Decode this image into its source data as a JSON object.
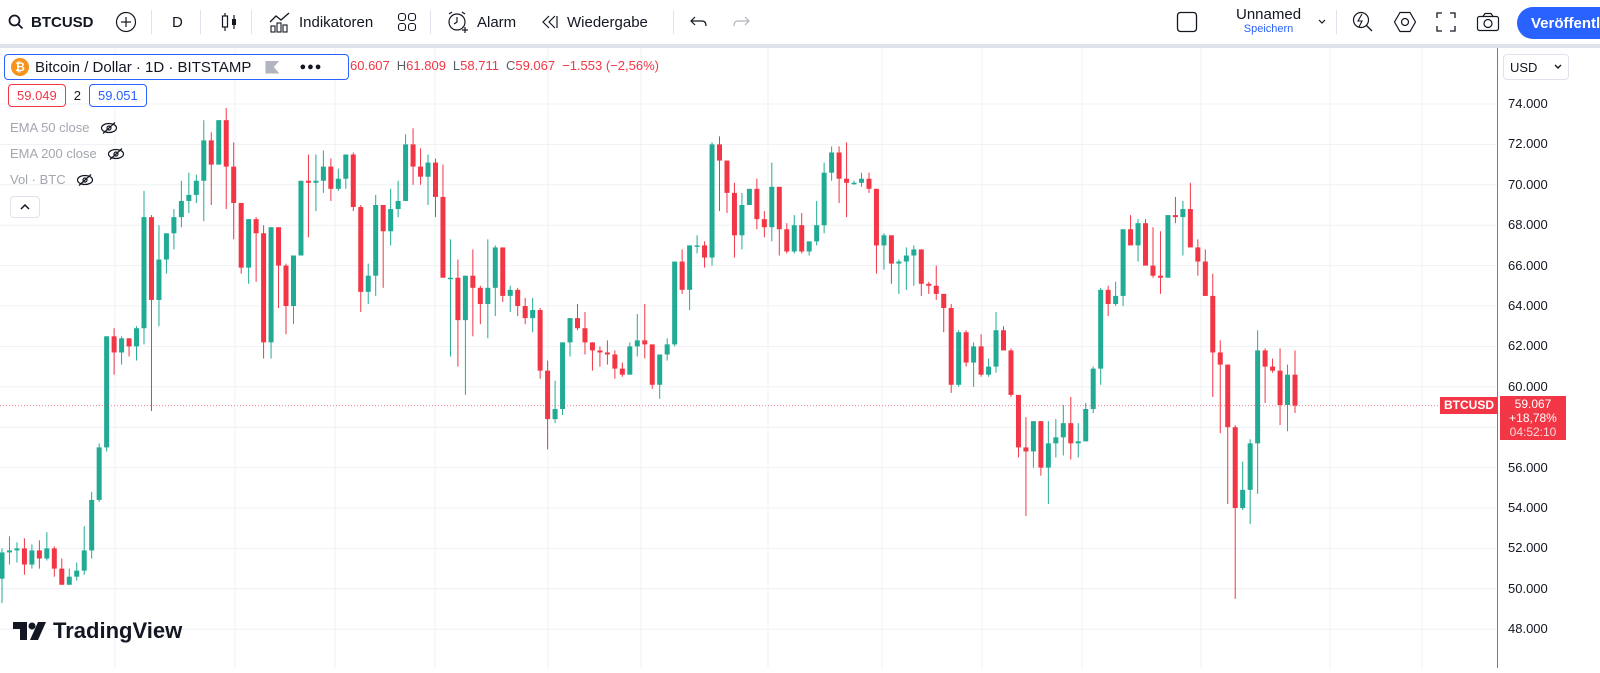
{
  "toolbar": {
    "symbol": "BTCUSD",
    "interval": "D",
    "indicators_label": "Indikatoren",
    "alarm_label": "Alarm",
    "replay_label": "Wiedergabe",
    "layout_name": "Unnamed",
    "save_label": "Speichern",
    "publish_label": "Veröffentl"
  },
  "legend": {
    "title": "Bitcoin / Dollar · 1D · BITSTAMP",
    "logo_letter": "₿",
    "open_label": "O",
    "open": "60.607",
    "high_label": "H",
    "high": "61.809",
    "low_label": "L",
    "low": "58.711",
    "close_label": "C",
    "close": "59.067",
    "change": "−1.553 (−2,56%)",
    "bid": "59.049",
    "spread": "2",
    "ask": "59.051"
  },
  "indicators": [
    {
      "label": "EMA 50 close",
      "visible": false
    },
    {
      "label": "EMA 200 close",
      "visible": false
    },
    {
      "label": "Vol · BTC",
      "visible": false
    }
  ],
  "price_axis": {
    "currency": "USD",
    "ticks": [
      "74.000",
      "72.000",
      "70.000",
      "68.000",
      "66.000",
      "64.000",
      "62.000",
      "60.000",
      "58.000",
      "56.000",
      "54.000",
      "52.000",
      "50.000",
      "48.000"
    ],
    "last_price": "59.067",
    "last_change": "+18,78%",
    "countdown": "04:52:10",
    "symbol_tag": "BTCUSD"
  },
  "branding": {
    "logo_text": "TradingView"
  },
  "colors": {
    "up": "#22ab94",
    "down": "#f23645",
    "accent": "#2962ff",
    "grid": "#eef1f6"
  },
  "chart_data": {
    "type": "candlestick",
    "title": "Bitcoin / Dollar · 1D · BITSTAMP",
    "ylabel": "USD",
    "ylim": [
      47000,
      75500
    ],
    "y_ticks": [
      48000,
      50000,
      52000,
      54000,
      56000,
      58000,
      60000,
      62000,
      64000,
      66000,
      68000,
      70000,
      72000,
      74000
    ],
    "last_close": 59067,
    "ohlc_thousands": [
      [
        50.5,
        52.0,
        49.3,
        51.8
      ],
      [
        51.8,
        52.6,
        51.2,
        51.9
      ],
      [
        51.9,
        52.3,
        51.3,
        52.0
      ],
      [
        52.0,
        52.5,
        50.7,
        51.2
      ],
      [
        51.2,
        52.2,
        51.0,
        51.9
      ],
      [
        51.9,
        52.4,
        51.0,
        51.5
      ],
      [
        51.5,
        52.8,
        51.4,
        52.0
      ],
      [
        52.0,
        52.1,
        50.6,
        51.0
      ],
      [
        51.0,
        51.5,
        50.2,
        50.2
      ],
      [
        50.2,
        51.0,
        50.2,
        50.6
      ],
      [
        50.6,
        51.3,
        50.4,
        50.9
      ],
      [
        50.9,
        53.1,
        50.7,
        51.9
      ],
      [
        51.9,
        54.8,
        51.5,
        54.4
      ],
      [
        54.4,
        57.2,
        54.3,
        57.0
      ],
      [
        57.0,
        62.5,
        56.8,
        62.5
      ],
      [
        62.5,
        62.9,
        60.6,
        61.7
      ],
      [
        61.7,
        62.5,
        61.1,
        62.4
      ],
      [
        62.4,
        62.4,
        61.5,
        62.0
      ],
      [
        62.0,
        63.0,
        61.3,
        62.9
      ],
      [
        62.9,
        69.7,
        62.1,
        68.4
      ],
      [
        68.4,
        68.5,
        58.8,
        64.3
      ],
      [
        64.3,
        68.0,
        63.0,
        66.3
      ],
      [
        66.3,
        67.2,
        65.6,
        67.6
      ],
      [
        67.6,
        68.8,
        66.8,
        68.4
      ],
      [
        68.4,
        70.2,
        67.9,
        69.2
      ],
      [
        69.2,
        70.6,
        68.6,
        69.5
      ],
      [
        69.5,
        70.5,
        69.1,
        70.2
      ],
      [
        70.2,
        73.2,
        68.2,
        72.2
      ],
      [
        72.2,
        72.6,
        69.0,
        71.0
      ],
      [
        71.0,
        73.2,
        72.1,
        73.2
      ],
      [
        73.2,
        73.8,
        68.8,
        70.9
      ],
      [
        70.9,
        72.1,
        67.3,
        69.1
      ],
      [
        69.1,
        69.0,
        65.6,
        65.9
      ],
      [
        65.9,
        68.3,
        65.1,
        68.3
      ],
      [
        68.3,
        68.4,
        65.2,
        67.6
      ],
      [
        67.6,
        68.0,
        61.4,
        62.2
      ],
      [
        62.2,
        67.9,
        61.4,
        67.9
      ],
      [
        67.9,
        67.8,
        63.9,
        66.0
      ],
      [
        66.0,
        66.1,
        62.6,
        64.0
      ],
      [
        64.0,
        65.6,
        63.1,
        66.5
      ],
      [
        66.5,
        68.8,
        66.7,
        70.2
      ],
      [
        70.2,
        71.5,
        67.4,
        70.1
      ],
      [
        70.1,
        71.5,
        68.7,
        70.2
      ],
      [
        70.2,
        71.7,
        69.6,
        70.9
      ],
      [
        70.9,
        71.3,
        69.2,
        69.8
      ],
      [
        69.8,
        70.8,
        69.7,
        70.3
      ],
      [
        70.3,
        71.5,
        69.8,
        71.5
      ],
      [
        71.5,
        71.6,
        68.7,
        68.9
      ],
      [
        68.9,
        69.0,
        63.7,
        64.7
      ],
      [
        64.7,
        66.1,
        64.1,
        65.5
      ],
      [
        65.5,
        69.5,
        64.5,
        69.0
      ],
      [
        69.0,
        69.0,
        64.9,
        67.7
      ],
      [
        67.7,
        69.8,
        67.0,
        68.8
      ],
      [
        68.8,
        70.2,
        68.4,
        69.2
      ],
      [
        69.2,
        72.5,
        69.4,
        72.0
      ],
      [
        72.0,
        72.8,
        70.0,
        70.9
      ],
      [
        70.9,
        71.8,
        70.0,
        70.4
      ],
      [
        70.4,
        71.5,
        69.0,
        71.1
      ],
      [
        71.1,
        71.3,
        68.4,
        69.4
      ],
      [
        69.4,
        71.0,
        66.5,
        65.4
      ],
      [
        65.4,
        67.3,
        61.5,
        65.4
      ],
      [
        65.4,
        66.3,
        61.0,
        63.3
      ],
      [
        63.3,
        65.3,
        59.6,
        65.5
      ],
      [
        65.5,
        66.8,
        62.5,
        64.9
      ],
      [
        64.9,
        65.0,
        63.1,
        64.1
      ],
      [
        64.1,
        67.3,
        62.4,
        64.9
      ],
      [
        64.9,
        67.0,
        63.5,
        66.9
      ],
      [
        66.9,
        66.3,
        64.2,
        64.5
      ],
      [
        64.5,
        65.0,
        63.7,
        64.8
      ],
      [
        64.8,
        64.9,
        63.5,
        64.0
      ],
      [
        64.0,
        64.4,
        63.1,
        63.4
      ],
      [
        63.4,
        64.4,
        62.7,
        63.8
      ],
      [
        63.8,
        63.9,
        60.4,
        60.8
      ],
      [
        60.8,
        61.3,
        56.9,
        58.4
      ],
      [
        58.4,
        60.3,
        58.2,
        58.9
      ],
      [
        58.9,
        62.1,
        58.6,
        62.2
      ],
      [
        62.2,
        63.4,
        61.5,
        63.4
      ],
      [
        63.4,
        64.1,
        62.8,
        62.9
      ],
      [
        62.9,
        63.7,
        61.6,
        62.2
      ],
      [
        62.2,
        62.2,
        60.8,
        61.8
      ],
      [
        61.8,
        62.0,
        61.0,
        61.7
      ],
      [
        61.7,
        62.3,
        61.1,
        61.6
      ],
      [
        61.6,
        61.8,
        60.4,
        60.9
      ],
      [
        60.9,
        61.2,
        60.5,
        60.6
      ],
      [
        60.6,
        62.2,
        60.8,
        62.0
      ],
      [
        62.0,
        63.6,
        61.5,
        62.3
      ],
      [
        62.3,
        64.1,
        61.4,
        62.1
      ],
      [
        62.1,
        61.7,
        59.9,
        60.1
      ],
      [
        60.1,
        61.5,
        59.4,
        61.6
      ],
      [
        61.6,
        62.4,
        61.3,
        62.1
      ],
      [
        62.1,
        64.2,
        62.0,
        66.2
      ],
      [
        66.2,
        66.8,
        64.6,
        64.8
      ],
      [
        64.8,
        67.0,
        63.8,
        67.0
      ],
      [
        67.0,
        67.5,
        66.6,
        67.0
      ],
      [
        67.0,
        67.2,
        65.9,
        66.4
      ],
      [
        66.4,
        72.1,
        66.0,
        72.0
      ],
      [
        72.0,
        72.4,
        68.7,
        71.2
      ],
      [
        71.2,
        71.2,
        68.6,
        69.6
      ],
      [
        69.6,
        70.1,
        66.4,
        67.5
      ],
      [
        67.5,
        69.6,
        66.8,
        69.0
      ],
      [
        69.0,
        69.4,
        69.0,
        69.8
      ],
      [
        69.8,
        70.3,
        67.8,
        68.3
      ],
      [
        68.3,
        68.7,
        67.4,
        67.9
      ],
      [
        67.9,
        71.1,
        67.2,
        69.9
      ],
      [
        69.9,
        69.6,
        66.5,
        67.8
      ],
      [
        67.8,
        68.1,
        66.6,
        66.7
      ],
      [
        66.7,
        68.5,
        66.6,
        68.0
      ],
      [
        68.0,
        68.6,
        66.6,
        66.7
      ],
      [
        66.7,
        67.0,
        66.5,
        67.2
      ],
      [
        67.2,
        69.2,
        67.0,
        68.0
      ],
      [
        68.0,
        71.1,
        67.6,
        70.6
      ],
      [
        70.6,
        71.9,
        70.2,
        71.6
      ],
      [
        71.6,
        71.9,
        69.1,
        70.3
      ],
      [
        70.3,
        72.1,
        68.4,
        70.1
      ],
      [
        70.1,
        70.2,
        70.0,
        70.1
      ],
      [
        70.1,
        70.6,
        69.9,
        70.3
      ],
      [
        70.3,
        70.6,
        69.6,
        69.8
      ],
      [
        69.8,
        69.3,
        65.6,
        67.0
      ],
      [
        67.0,
        67.6,
        65.8,
        67.5
      ],
      [
        67.5,
        67.5,
        65.1,
        66.1
      ],
      [
        66.1,
        66.3,
        64.6,
        66.2
      ],
      [
        66.2,
        66.9,
        64.8,
        66.5
      ],
      [
        66.5,
        67.0,
        65.0,
        66.8
      ],
      [
        66.8,
        66.6,
        64.5,
        65.1
      ],
      [
        65.1,
        65.2,
        64.6,
        65.0
      ],
      [
        65.0,
        66.0,
        64.3,
        64.6
      ],
      [
        64.6,
        64.5,
        62.7,
        63.9
      ],
      [
        63.9,
        64.1,
        59.7,
        60.1
      ],
      [
        60.1,
        62.8,
        60.0,
        62.7
      ],
      [
        62.7,
        62.8,
        61.0,
        61.2
      ],
      [
        61.2,
        62.2,
        60.0,
        62.0
      ],
      [
        62.0,
        62.6,
        60.5,
        60.6
      ],
      [
        60.6,
        61.4,
        60.5,
        61.0
      ],
      [
        61.0,
        63.7,
        60.7,
        62.8
      ],
      [
        62.8,
        63.0,
        62.0,
        61.8
      ],
      [
        61.8,
        61.9,
        59.5,
        59.6
      ],
      [
        59.6,
        59.3,
        56.5,
        57.0
      ],
      [
        57.0,
        58.5,
        53.6,
        56.8
      ],
      [
        56.8,
        58.3,
        56.0,
        58.3
      ],
      [
        58.3,
        58.2,
        55.6,
        56.0
      ],
      [
        56.0,
        58.3,
        54.2,
        57.2
      ],
      [
        57.2,
        58.4,
        56.5,
        57.5
      ],
      [
        57.5,
        59.1,
        56.6,
        58.2
      ],
      [
        58.2,
        59.5,
        56.4,
        57.2
      ],
      [
        57.2,
        58.2,
        56.5,
        57.3
      ],
      [
        57.3,
        59.2,
        57.5,
        58.9
      ],
      [
        58.9,
        61.0,
        58.7,
        60.9
      ],
      [
        60.9,
        64.9,
        60.1,
        64.8
      ],
      [
        64.8,
        65.0,
        63.5,
        64.1
      ],
      [
        64.1,
        65.2,
        64.0,
        64.5
      ],
      [
        64.5,
        67.6,
        64.0,
        67.8
      ],
      [
        67.8,
        68.5,
        67.6,
        67.0
      ],
      [
        67.0,
        68.3,
        66.2,
        68.1
      ],
      [
        68.1,
        68.3,
        66.9,
        66.0
      ],
      [
        66.0,
        67.9,
        65.4,
        65.5
      ],
      [
        65.5,
        67.7,
        64.6,
        65.4
      ],
      [
        65.4,
        68.2,
        65.9,
        68.5
      ],
      [
        68.5,
        69.4,
        68.1,
        68.4
      ],
      [
        68.4,
        69.2,
        66.5,
        68.8
      ],
      [
        68.8,
        70.1,
        67.5,
        66.9
      ],
      [
        66.9,
        67.3,
        65.5,
        66.2
      ],
      [
        66.2,
        66.8,
        64.8,
        64.5
      ],
      [
        64.5,
        65.6,
        59.5,
        61.7
      ],
      [
        61.7,
        62.3,
        57.7,
        61.1
      ],
      [
        61.1,
        60.5,
        54.2,
        58.0
      ],
      [
        58.0,
        58.1,
        49.5,
        54.0
      ],
      [
        54.0,
        56.3,
        53.9,
        54.9
      ],
      [
        54.9,
        57.4,
        53.2,
        57.2
      ],
      [
        57.2,
        62.8,
        54.7,
        61.8
      ],
      [
        61.8,
        61.9,
        59.2,
        61.0
      ],
      [
        61.0,
        61.4,
        60.7,
        60.8
      ],
      [
        60.8,
        61.9,
        58.1,
        59.1
      ],
      [
        59.1,
        61.1,
        57.8,
        60.6
      ],
      [
        60.6,
        61.8,
        58.7,
        59.067
      ]
    ]
  }
}
